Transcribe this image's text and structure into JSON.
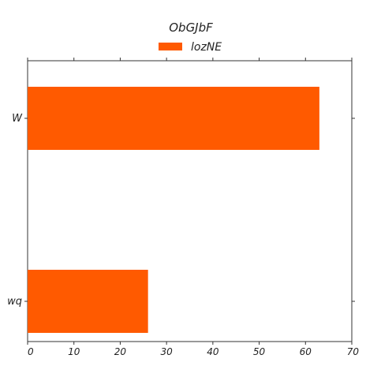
{
  "chart_data": {
    "type": "bar",
    "orientation": "horizontal",
    "title": "ObGJbF",
    "xlabel": "",
    "ylabel": "",
    "categories": [
      "W",
      "wq"
    ],
    "series": [
      {
        "name": "lozNE",
        "values": [
          63,
          26
        ],
        "color": "#ff5a00"
      }
    ],
    "xlim": [
      0,
      70
    ],
    "xticks": [
      0,
      10,
      20,
      30,
      40,
      50,
      60,
      70
    ],
    "grid": false,
    "legend_position": "top-center"
  }
}
